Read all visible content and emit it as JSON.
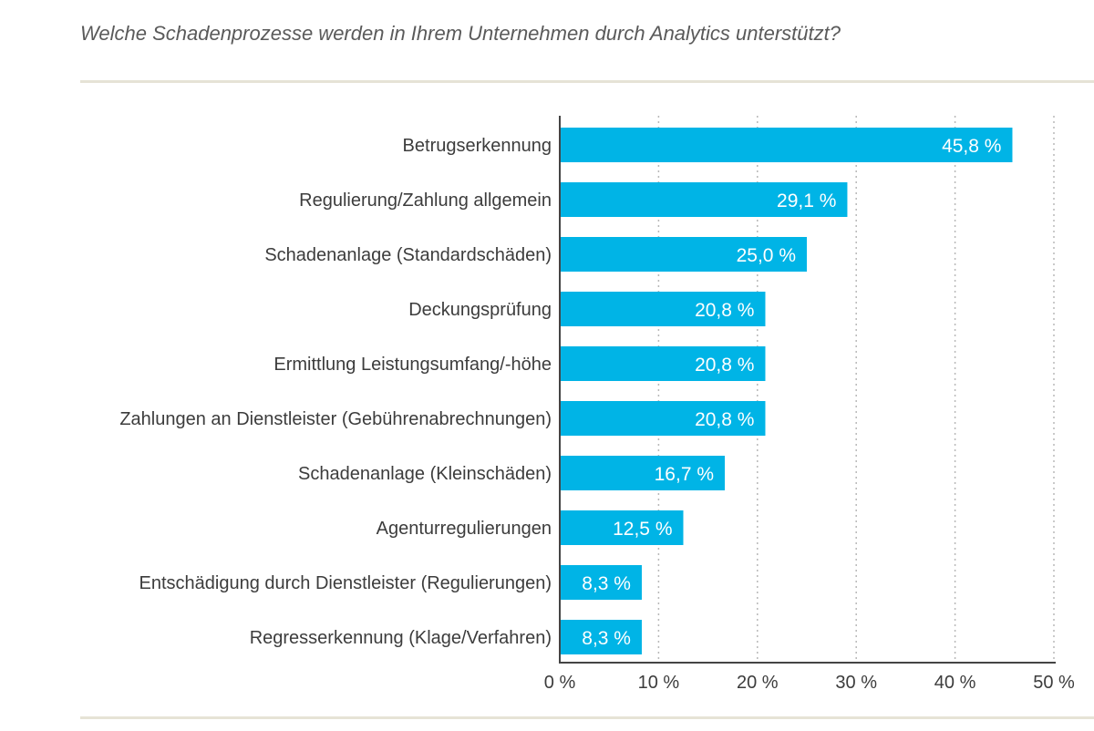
{
  "title": "Welche Schadenprozesse werden in Ihrem Unternehmen durch Analytics unterstützt?",
  "colors": {
    "bar": "#00b4e6",
    "axis": "#444444",
    "grid": "#b8b8b8",
    "rule": "#e6e3d6"
  },
  "chart_data": {
    "type": "bar",
    "orientation": "horizontal",
    "title": "Welche Schadenprozesse werden in Ihrem Unternehmen durch Analytics unterstützt?",
    "categories": [
      "Betrugserkennung",
      "Regulierung/Zahlung allgemein",
      "Schadenanlage (Standardschäden)",
      "Deckungsprüfung",
      "Ermittlung Leistungsumfang/-höhe",
      "Zahlungen an Dienstleister (Gebührenabrechnungen)",
      "Schadenanlage (Kleinschäden)",
      "Agenturregulierungen",
      "Entschädigung durch Dienstleister (Regulierungen)",
      "Regresserkennung (Klage/Verfahren)"
    ],
    "values": [
      45.8,
      29.1,
      25.0,
      20.8,
      20.8,
      20.8,
      16.7,
      12.5,
      8.3,
      8.3
    ],
    "value_labels": [
      "45,8 %",
      "29,1 %",
      "25,0 %",
      "20,8 %",
      "20,8 %",
      "20,8 %",
      "16,7 %",
      "12,5 %",
      "8,3 %",
      "8,3 %"
    ],
    "xlim": [
      0,
      50
    ],
    "xticks": [
      0,
      10,
      20,
      30,
      40,
      50
    ],
    "xtick_labels": [
      "0 %",
      "10 %",
      "20 %",
      "30 %",
      "40 %",
      "50 %"
    ],
    "xlabel": "",
    "ylabel": "",
    "grid": "vertical-dotted",
    "legend": "none"
  }
}
